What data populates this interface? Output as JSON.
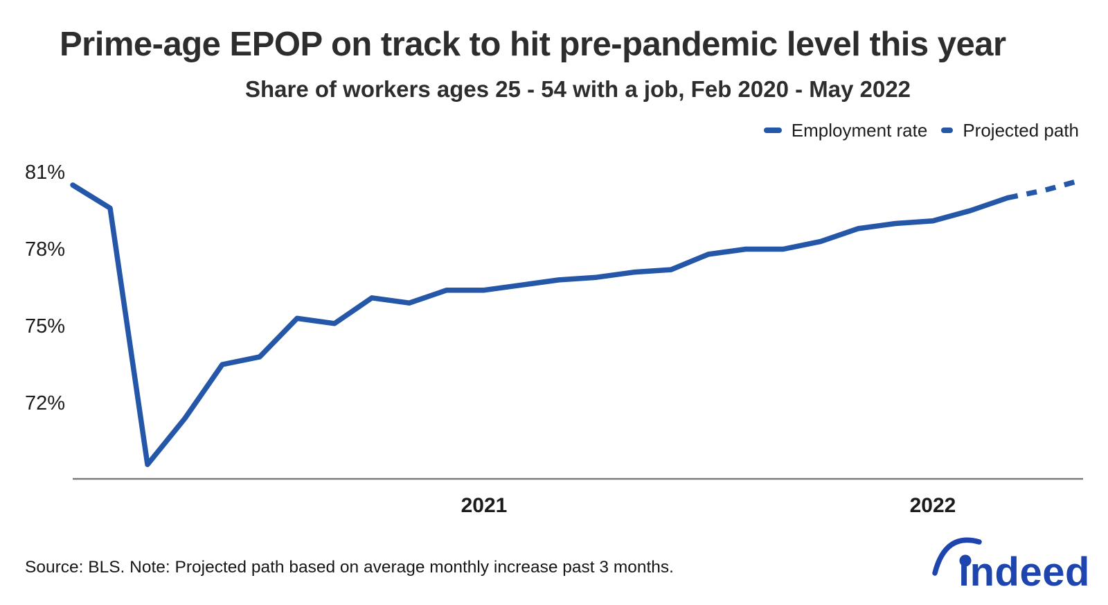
{
  "title": "Prime-age EPOP on track to hit pre-pandemic level this year",
  "subtitle": "Share of workers ages 25 - 54 with a job, Feb 2020 - May 2022",
  "legend": {
    "employment_label": "Employment rate",
    "projected_label": "Projected path"
  },
  "footer": {
    "source_note": "Source: BLS. Note: Projected path based on average monthly increase past 3 months.",
    "logo_text": "indeed"
  },
  "colors": {
    "line_blue": "#2457a8",
    "logo_blue": "#1e44ad",
    "axis_gray": "#7b7b7b",
    "title_gray": "#2d2d2d",
    "text_black": "#1b1b1b"
  },
  "chart_data": {
    "type": "line",
    "title": "Prime-age EPOP on track to hit pre-pandemic level this year",
    "subtitle": "Share of workers ages 25 - 54 with a job, Feb 2020 - May 2022",
    "x_unit": "month",
    "ylim": [
      69,
      81.6
    ],
    "grid": false,
    "legend_position": "top-right",
    "y_ticks": [
      {
        "value": 81,
        "label": "81%"
      },
      {
        "value": 78,
        "label": "78%"
      },
      {
        "value": 75,
        "label": "75%"
      },
      {
        "value": 72,
        "label": "72%"
      }
    ],
    "x_year_ticks": [
      {
        "label": "2021",
        "month_index": 11
      },
      {
        "label": "2022",
        "month_index": 23
      }
    ],
    "series": [
      {
        "name": "Employment rate",
        "style": "solid",
        "start_month_index": 0,
        "x": [
          "Feb 2020",
          "Mar 2020",
          "Apr 2020",
          "May 2020",
          "Jun 2020",
          "Jul 2020",
          "Aug 2020",
          "Sep 2020",
          "Oct 2020",
          "Nov 2020",
          "Dec 2020",
          "Jan 2021",
          "Feb 2021",
          "Mar 2021",
          "Apr 2021",
          "May 2021",
          "Jun 2021",
          "Jul 2021",
          "Aug 2021",
          "Sep 2021",
          "Oct 2021",
          "Nov 2021",
          "Dec 2021",
          "Jan 2022",
          "Feb 2022",
          "Mar 2022"
        ],
        "values": [
          80.5,
          79.6,
          69.6,
          71.4,
          73.5,
          73.8,
          75.3,
          75.1,
          76.1,
          75.9,
          76.4,
          76.4,
          76.6,
          76.8,
          76.9,
          77.1,
          77.2,
          77.8,
          78.0,
          78.0,
          78.3,
          78.8,
          79.0,
          79.1,
          79.5,
          80.0
        ]
      },
      {
        "name": "Projected path",
        "style": "dashed",
        "start_month_index": 25,
        "x": [
          "Mar 2022",
          "Apr 2022",
          "May 2022"
        ],
        "values": [
          80.0,
          80.3,
          80.7
        ]
      }
    ]
  }
}
